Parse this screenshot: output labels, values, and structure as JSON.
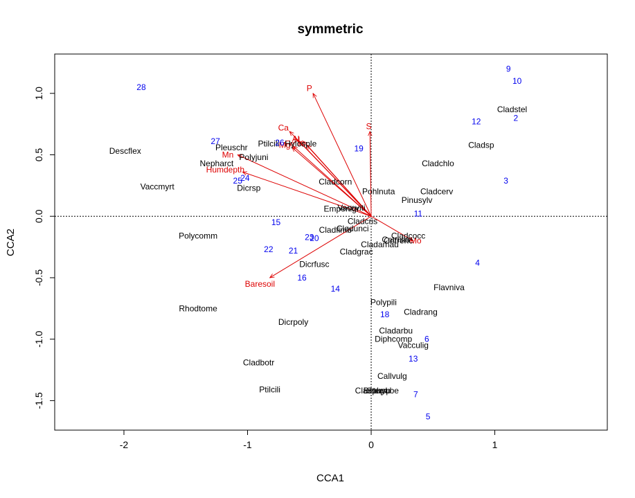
{
  "chart_data": {
    "type": "scatter",
    "title": "symmetric",
    "xlabel": "CCA1",
    "ylabel": "CCA2",
    "xlim": [
      -2.56,
      1.91
    ],
    "ylim": [
      -1.74,
      1.32
    ],
    "xticks": [
      {
        "value": -2,
        "label": "-2"
      },
      {
        "value": -1,
        "label": "-1"
      },
      {
        "value": 0,
        "label": "0"
      },
      {
        "value": 1,
        "label": "1"
      }
    ],
    "yticks": [
      {
        "value": -1.5,
        "label": "-1.5"
      },
      {
        "value": -1.0,
        "label": "-1.0"
      },
      {
        "value": -0.5,
        "label": "-0.5"
      },
      {
        "value": 0.0,
        "label": "0.0"
      },
      {
        "value": 0.5,
        "label": "0.5"
      },
      {
        "value": 1.0,
        "label": "1.0"
      }
    ],
    "reference_lines": {
      "x": 0,
      "y": 0
    },
    "colors": {
      "species": "#000000",
      "sites": "#0000ee",
      "environment": "#dd0000"
    },
    "species": [
      {
        "label": "Cladstel",
        "x": 1.14,
        "y": 0.87
      },
      {
        "label": "Cladsp",
        "x": 0.89,
        "y": 0.58
      },
      {
        "label": "Cladchlo",
        "x": 0.54,
        "y": 0.43
      },
      {
        "label": "Cladcerv",
        "x": 0.53,
        "y": 0.2
      },
      {
        "label": "Pinusylv",
        "x": 0.37,
        "y": 0.13
      },
      {
        "label": "Pohlnuta",
        "x": 0.06,
        "y": 0.2
      },
      {
        "label": "Cladcorn",
        "x": -0.29,
        "y": 0.28
      },
      {
        "label": "Empenigr",
        "x": -0.24,
        "y": 0.06
      },
      {
        "label": "Vaccviti",
        "x": -0.16,
        "y": 0.07
      },
      {
        "label": "Pleuschr",
        "x": -1.13,
        "y": 0.56
      },
      {
        "label": "Polyjuni",
        "x": -0.95,
        "y": 0.48
      },
      {
        "label": "Ptilcili",
        "x": -0.83,
        "y": 0.59
      },
      {
        "label": "Hylosple",
        "x": -0.57,
        "y": 0.59
      },
      {
        "label": "Dicrsp",
        "x": -0.99,
        "y": 0.23
      },
      {
        "label": "Nepharct",
        "x": -1.25,
        "y": 0.43
      },
      {
        "label": "Descflex",
        "x": -1.99,
        "y": 0.53
      },
      {
        "label": "Vaccmyrt",
        "x": -1.73,
        "y": 0.24
      },
      {
        "label": "Cladcris",
        "x": -0.07,
        "y": -0.04
      },
      {
        "label": "Cladfimb",
        "x": -0.29,
        "y": -0.11
      },
      {
        "label": "Cladunci",
        "x": -0.15,
        "y": -0.1
      },
      {
        "label": "Cladcocc",
        "x": 0.3,
        "y": -0.16
      },
      {
        "label": "Cladgrac",
        "x": -0.12,
        "y": -0.29
      },
      {
        "label": "Cladamau",
        "x": 0.07,
        "y": -0.23
      },
      {
        "label": "Cetrisla",
        "x": 0.2,
        "y": -0.19
      },
      {
        "label": "Cetreric",
        "x": 0.22,
        "y": -0.2
      },
      {
        "label": "Polycomm",
        "x": -1.4,
        "y": -0.16
      },
      {
        "label": "Dicrfusc",
        "x": -0.46,
        "y": -0.39
      },
      {
        "label": "Rhodtome",
        "x": -1.4,
        "y": -0.75
      },
      {
        "label": "Flavniva",
        "x": 0.63,
        "y": -0.58
      },
      {
        "label": "Polypili",
        "x": 0.1,
        "y": -0.7
      },
      {
        "label": "Cladrang",
        "x": 0.4,
        "y": -0.78
      },
      {
        "label": "Cladarbu",
        "x": 0.2,
        "y": -0.93
      },
      {
        "label": "Diphcomp",
        "x": 0.18,
        "y": -1.0
      },
      {
        "label": "Vacculig",
        "x": 0.34,
        "y": -1.05
      },
      {
        "label": "Dicrpoly",
        "x": -0.63,
        "y": -0.86
      },
      {
        "label": "Cladbotr",
        "x": -0.91,
        "y": -1.19
      },
      {
        "label": "Callvulg",
        "x": 0.17,
        "y": -1.3
      },
      {
        "label": "Ptilcili",
        "x": -0.82,
        "y": -1.41
      },
      {
        "label": "Cladphyl",
        "x": 0.0,
        "y": -1.42
      },
      {
        "label": "Stersp",
        "x": 0.06,
        "y": -1.42
      },
      {
        "label": "Betupube",
        "x": 0.08,
        "y": -1.42
      }
    ],
    "sites": [
      {
        "label": "9",
        "x": 1.11,
        "y": 1.2
      },
      {
        "label": "10",
        "x": 1.18,
        "y": 1.1
      },
      {
        "label": "28",
        "x": -1.86,
        "y": 1.05
      },
      {
        "label": "12",
        "x": 0.85,
        "y": 0.77
      },
      {
        "label": "2",
        "x": 1.17,
        "y": 0.8
      },
      {
        "label": "27",
        "x": -1.26,
        "y": 0.61
      },
      {
        "label": "19",
        "x": -0.1,
        "y": 0.55
      },
      {
        "label": "26",
        "x": -0.74,
        "y": 0.6
      },
      {
        "label": "25",
        "x": -1.08,
        "y": 0.29
      },
      {
        "label": "24",
        "x": -1.02,
        "y": 0.31
      },
      {
        "label": "3",
        "x": 1.09,
        "y": 0.29
      },
      {
        "label": "11",
        "x": 0.38,
        "y": 0.02
      },
      {
        "label": "15",
        "x": -0.77,
        "y": -0.05
      },
      {
        "label": "23",
        "x": -0.5,
        "y": -0.17
      },
      {
        "label": "20",
        "x": -0.46,
        "y": -0.18
      },
      {
        "label": "22",
        "x": -0.83,
        "y": -0.27
      },
      {
        "label": "21",
        "x": -0.63,
        "y": -0.28
      },
      {
        "label": "4",
        "x": 0.86,
        "y": -0.38
      },
      {
        "label": "16",
        "x": -0.56,
        "y": -0.5
      },
      {
        "label": "14",
        "x": -0.29,
        "y": -0.59
      },
      {
        "label": "18",
        "x": 0.11,
        "y": -0.8
      },
      {
        "label": "6",
        "x": 0.45,
        "y": -1.0
      },
      {
        "label": "13",
        "x": 0.34,
        "y": -1.16
      },
      {
        "label": "7",
        "x": 0.36,
        "y": -1.45
      },
      {
        "label": "5",
        "x": 0.46,
        "y": -1.63
      }
    ],
    "environment": [
      {
        "label": "P",
        "x": -0.47,
        "y": 1.0,
        "label_x": -0.5,
        "label_y": 1.04
      },
      {
        "label": "Ca",
        "x": -0.66,
        "y": 0.69,
        "label_x": -0.71,
        "label_y": 0.72
      },
      {
        "label": "Al",
        "x": -0.58,
        "y": 0.61,
        "label_x": -0.61,
        "label_y": 0.63
      },
      {
        "label": "Mg",
        "x": -0.64,
        "y": 0.56,
        "label_x": -0.7,
        "label_y": 0.58
      },
      {
        "label": "Fe",
        "x": -0.63,
        "y": 0.57,
        "label_x": -0.66,
        "label_y": 0.59
      },
      {
        "label": "K",
        "x": -0.52,
        "y": 0.58,
        "label_x": -0.57,
        "label_y": 0.59
      },
      {
        "label": "N",
        "x": -0.55,
        "y": 0.61,
        "label_x": -0.6,
        "label_y": 0.62
      },
      {
        "label": "S",
        "x": -0.01,
        "y": 0.69,
        "label_x": -0.02,
        "label_y": 0.73
      },
      {
        "label": "Mn",
        "x": -1.08,
        "y": 0.5,
        "label_x": -1.16,
        "label_y": 0.5
      },
      {
        "label": "Humdepth",
        "x": -1.04,
        "y": 0.36,
        "label_x": -1.18,
        "label_y": 0.38
      },
      {
        "label": "Baresoil",
        "x": -0.82,
        "y": -0.5,
        "label_x": -0.9,
        "label_y": -0.55
      },
      {
        "label": "Mo",
        "x": 0.34,
        "y": -0.2,
        "label_x": 0.36,
        "label_y": -0.2
      }
    ]
  }
}
